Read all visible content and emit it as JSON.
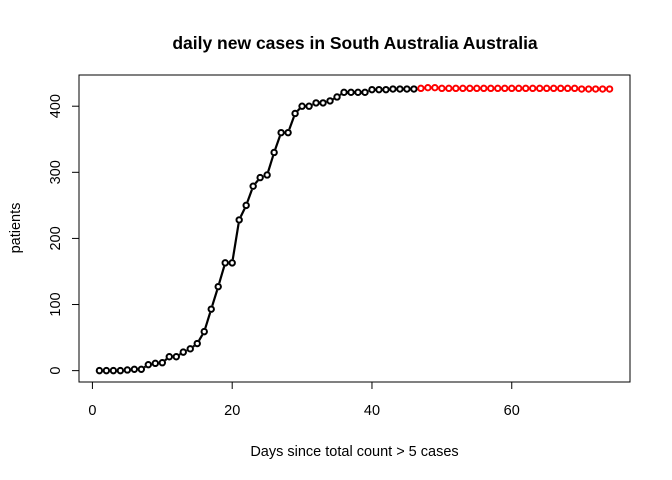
{
  "chart_data": {
    "type": "line",
    "title": "daily new cases in  South Australia Australia",
    "xlabel": "Days since total count > 5 cases",
    "ylabel": "patients",
    "xlim": [
      -1.92,
      76.92
    ],
    "ylim": [
      -17.2,
      447.2
    ],
    "x_ticks": [
      0,
      20,
      40,
      60
    ],
    "y_ticks": [
      0,
      100,
      200,
      300,
      400
    ],
    "grid": false,
    "series": [
      {
        "style": "line+points",
        "color": "#000000",
        "x": [
          1,
          2,
          3,
          4,
          5,
          6,
          7,
          8,
          9,
          10,
          11,
          12,
          13,
          14,
          15,
          16,
          17,
          18,
          19,
          20,
          21,
          22,
          23,
          24,
          25,
          26,
          27,
          28,
          29,
          30,
          31,
          32,
          33,
          34,
          35,
          36,
          37,
          38,
          39,
          40,
          41,
          42,
          43,
          44,
          45,
          46
        ],
        "y": [
          0,
          0,
          0,
          0,
          1,
          2,
          2,
          9,
          11,
          12,
          21,
          21,
          28,
          33,
          41,
          59,
          93,
          127,
          163,
          163,
          228,
          250,
          279,
          292,
          296,
          330,
          360,
          360,
          389,
          400,
          400,
          405,
          405,
          408,
          414,
          421,
          421,
          421,
          421,
          425,
          425,
          425,
          426,
          426,
          426,
          426
        ]
      },
      {
        "style": "points",
        "color": "#ff0000",
        "x": [
          47,
          48,
          49,
          50,
          51,
          52,
          53,
          54,
          55,
          56,
          57,
          58,
          59,
          60,
          61,
          62,
          63,
          64,
          65,
          66,
          67,
          68,
          69,
          70,
          71,
          72,
          73,
          74
        ],
        "y": [
          427,
          428,
          428,
          427,
          427,
          427,
          427,
          427,
          427,
          427,
          427,
          427,
          427,
          427,
          427,
          427,
          427,
          427,
          427,
          427,
          427,
          427,
          427,
          426,
          426,
          426,
          426,
          426
        ]
      }
    ]
  }
}
